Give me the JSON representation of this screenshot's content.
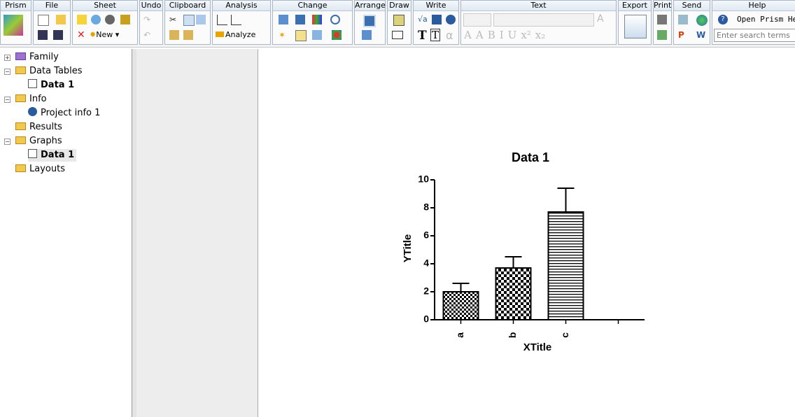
{
  "toolbar": {
    "groups": [
      "Prism",
      "File",
      "Sheet",
      "Undo",
      "Clipboard",
      "Analysis",
      "Change",
      "Arrange",
      "Draw",
      "Write",
      "Text",
      "Export",
      "Print",
      "Send",
      "Help"
    ],
    "new_button": "New",
    "analyze_button": "Analyze",
    "help_button": "Open Prism Hel",
    "search_placeholder": "Enter search terms",
    "write_glyphs": [
      "T",
      "T",
      "α"
    ],
    "text_glyphs": [
      "A",
      "A",
      "B",
      "I",
      "U",
      "x²",
      "x₂"
    ]
  },
  "tree": {
    "items": [
      "Family",
      "Data Tables",
      "Data 1",
      "Info",
      "Project info 1",
      "Results",
      "Graphs",
      "Data 1",
      "Layouts"
    ]
  },
  "chart_data": {
    "type": "bar",
    "title": "Data 1",
    "x_label": "XTitle",
    "y_label": "YTitle",
    "categories": [
      "a",
      "b",
      "c",
      null
    ],
    "values": [
      2.0,
      3.7,
      7.7,
      null
    ],
    "errors": [
      0.6,
      0.8,
      1.7,
      null
    ],
    "ylim": [
      0,
      10
    ],
    "yticks": [
      0,
      2,
      4,
      6,
      8,
      10
    ]
  }
}
